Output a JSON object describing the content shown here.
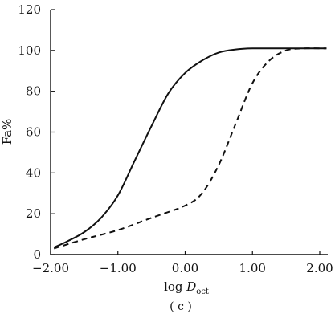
{
  "chart_data": {
    "type": "line",
    "title": "",
    "ylabel": "Fa%",
    "xlabel": {
      "prefix": "log ",
      "italic": "D",
      "subscript": "oct"
    },
    "caption": "( c )",
    "xlim": [
      -2.0,
      2.1
    ],
    "ylim": [
      0,
      120
    ],
    "x_ticks": [
      {
        "value": -2.0,
        "label": "−2.00"
      },
      {
        "value": -1.0,
        "label": "−1.00"
      },
      {
        "value": 0.0,
        "label": "0.00"
      },
      {
        "value": 1.0,
        "label": "1.00"
      },
      {
        "value": 2.0,
        "label": "2.00"
      }
    ],
    "y_ticks": [
      {
        "value": 0,
        "label": "0"
      },
      {
        "value": 20,
        "label": "20"
      },
      {
        "value": 40,
        "label": "40"
      },
      {
        "value": 60,
        "label": "60"
      },
      {
        "value": 80,
        "label": "80"
      },
      {
        "value": 100,
        "label": "100"
      },
      {
        "value": 120,
        "label": "120"
      }
    ],
    "grid": false,
    "series": [
      {
        "style": "solid",
        "points": [
          [
            -1.95,
            3.5
          ],
          [
            -1.75,
            6.5
          ],
          [
            -1.5,
            11
          ],
          [
            -1.25,
            18
          ],
          [
            -1.0,
            29
          ],
          [
            -0.75,
            46
          ],
          [
            -0.5,
            63
          ],
          [
            -0.25,
            79
          ],
          [
            0.0,
            89
          ],
          [
            0.25,
            95
          ],
          [
            0.5,
            99
          ],
          [
            0.75,
            100.5
          ],
          [
            1.0,
            101
          ],
          [
            1.5,
            101
          ],
          [
            2.1,
            101
          ]
        ]
      },
      {
        "style": "dashed",
        "points": [
          [
            -1.95,
            3
          ],
          [
            -1.5,
            7.5
          ],
          [
            -1.0,
            12
          ],
          [
            -0.5,
            18
          ],
          [
            0.0,
            24
          ],
          [
            0.25,
            30
          ],
          [
            0.5,
            44
          ],
          [
            0.75,
            64
          ],
          [
            1.0,
            84
          ],
          [
            1.25,
            95
          ],
          [
            1.5,
            100
          ],
          [
            1.75,
            101
          ],
          [
            2.1,
            101
          ]
        ]
      }
    ]
  }
}
